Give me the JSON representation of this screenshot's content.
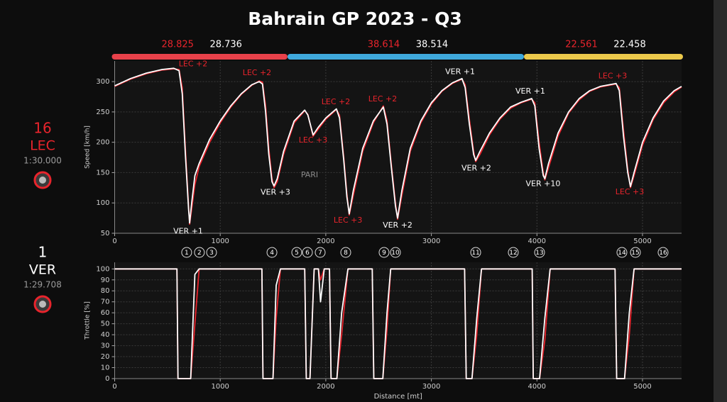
{
  "title": "Bahrain GP 2023 - Q3",
  "drivers": [
    {
      "number": 16,
      "code": "LEC",
      "lap_time": "1:30.000",
      "color": "#e8242c"
    },
    {
      "number": 1,
      "code": "VER",
      "lap_time": "1:29.708",
      "color": "#ffffff"
    }
  ],
  "sectors": [
    {
      "color": "#e8414a",
      "end": 1637,
      "times": [
        28.825,
        28.736
      ]
    },
    {
      "color": "#3fa9dc",
      "end": 3877,
      "times": [
        38.614,
        38.514
      ]
    },
    {
      "color": "#ecc94b",
      "end": 5370,
      "times": [
        22.561,
        22.458
      ]
    }
  ],
  "chart_data": [
    {
      "type": "line",
      "y_label": "Speed [km/h]",
      "x": [
        0,
        150,
        300,
        450,
        560,
        610,
        640,
        670,
        700,
        710,
        730,
        760,
        800,
        900,
        1000,
        1100,
        1200,
        1300,
        1370,
        1400,
        1430,
        1460,
        1490,
        1510,
        1540,
        1600,
        1700,
        1800,
        1830,
        1880,
        1930,
        2000,
        2100,
        2130,
        2170,
        2200,
        2222,
        2260,
        2350,
        2450,
        2545,
        2580,
        2620,
        2660,
        2680,
        2720,
        2800,
        2900,
        3000,
        3100,
        3200,
        3290,
        3320,
        3360,
        3400,
        3420,
        3460,
        3550,
        3650,
        3750,
        3850,
        3950,
        3980,
        4020,
        4060,
        4075,
        4110,
        4200,
        4300,
        4400,
        4500,
        4600,
        4750,
        4780,
        4820,
        4860,
        4886,
        4920,
        5000,
        5100,
        5200,
        5300,
        5370
      ],
      "series": [
        {
          "color": "#e8242c",
          "values": [
            292,
            304,
            313,
            319,
            321,
            320,
            290,
            190,
            95,
            65,
            90,
            130,
            160,
            200,
            232,
            258,
            279,
            294,
            301,
            299,
            260,
            190,
            140,
            125,
            135,
            180,
            232,
            252,
            246,
            210,
            222,
            238,
            254,
            245,
            175,
            115,
            80,
            112,
            185,
            232,
            260,
            236,
            165,
            100,
            73,
            112,
            185,
            232,
            263,
            284,
            297,
            304,
            295,
            238,
            185,
            168,
            180,
            212,
            238,
            256,
            265,
            271,
            265,
            200,
            150,
            138,
            158,
            210,
            248,
            270,
            284,
            291,
            296,
            290,
            220,
            155,
            125,
            145,
            195,
            237,
            265,
            283,
            291
          ]
        },
        {
          "color": "#ffffff",
          "values": [
            293,
            305,
            314,
            320,
            322,
            318,
            280,
            180,
            90,
            67,
            100,
            145,
            165,
            205,
            235,
            260,
            280,
            295,
            300,
            296,
            250,
            180,
            135,
            128,
            140,
            185,
            235,
            253,
            245,
            212,
            225,
            240,
            255,
            240,
            170,
            110,
            82,
            120,
            190,
            235,
            258,
            230,
            160,
            95,
            75,
            120,
            190,
            235,
            265,
            285,
            298,
            305,
            290,
            230,
            180,
            170,
            185,
            215,
            240,
            258,
            266,
            272,
            260,
            190,
            145,
            140,
            165,
            215,
            250,
            272,
            285,
            292,
            297,
            285,
            210,
            150,
            127,
            150,
            200,
            240,
            268,
            285,
            292
          ]
        }
      ],
      "xlim": [
        0,
        5370
      ],
      "ylim": [
        50,
        334
      ],
      "xticks": [
        0,
        1000,
        2000,
        3000,
        4000,
        5000
      ],
      "yticks": [
        50,
        100,
        150,
        200,
        250,
        300
      ],
      "grid": true,
      "annotations": [
        {
          "text": "LEC +2",
          "x": 743,
          "y": 329,
          "color": "#e8242c"
        },
        {
          "text": "VER +1",
          "x": 696,
          "y": 53,
          "color": "#ffffff"
        },
        {
          "text": "LEC +2",
          "x": 1348,
          "y": 314,
          "color": "#e8242c"
        },
        {
          "text": "VER +3",
          "x": 1523,
          "y": 117,
          "color": "#ffffff"
        },
        {
          "text": "LEC +2",
          "x": 2095,
          "y": 266,
          "color": "#e8242c"
        },
        {
          "text": "LEC +3",
          "x": 1880,
          "y": 203,
          "color": "#e8242c"
        },
        {
          "text": "PARI",
          "x": 1846,
          "y": 146,
          "color": "#8a8a8a"
        },
        {
          "text": "LEC +2",
          "x": 2539,
          "y": 271,
          "color": "#e8242c"
        },
        {
          "text": "LEC +3",
          "x": 2210,
          "y": 71,
          "color": "#e8242c"
        },
        {
          "text": "VER +2",
          "x": 2680,
          "y": 63,
          "color": "#ffffff"
        },
        {
          "text": "VER +1",
          "x": 3272,
          "y": 316,
          "color": "#ffffff"
        },
        {
          "text": "VER +2",
          "x": 3426,
          "y": 157,
          "color": "#ffffff"
        },
        {
          "text": "VER +1",
          "x": 3937,
          "y": 284,
          "color": "#ffffff"
        },
        {
          "text": "VER +10",
          "x": 4058,
          "y": 131,
          "color": "#ffffff"
        },
        {
          "text": "LEC +3",
          "x": 4718,
          "y": 309,
          "color": "#e8242c"
        },
        {
          "text": "LEC +3",
          "x": 4879,
          "y": 118,
          "color": "#e8242c"
        }
      ]
    },
    {
      "type": "line",
      "y_label": "Throttle [%]",
      "x_label": "Distance [mt]",
      "x": [
        0,
        590,
        600,
        720,
        760,
        800,
        1395,
        1405,
        1500,
        1530,
        1570,
        1800,
        1815,
        1850,
        1890,
        1930,
        1950,
        1985,
        2035,
        2050,
        2105,
        2150,
        2210,
        2440,
        2455,
        2540,
        2580,
        2615,
        3315,
        3330,
        3385,
        3430,
        3475,
        3955,
        3965,
        4025,
        4075,
        4125,
        4740,
        4755,
        4830,
        4875,
        4920,
        5370
      ],
      "series": [
        {
          "color": "#e8242c",
          "values": [
            100,
            100,
            0,
            0,
            50,
            100,
            100,
            0,
            0,
            55,
            100,
            100,
            0,
            0,
            100,
            100,
            90,
            100,
            100,
            0,
            0,
            40,
            100,
            100,
            0,
            0,
            45,
            100,
            100,
            0,
            0,
            40,
            100,
            100,
            0,
            0,
            35,
            100,
            100,
            0,
            0,
            40,
            100,
            100
          ]
        },
        {
          "color": "#ffffff",
          "values": [
            100,
            100,
            0,
            0,
            95,
            100,
            100,
            0,
            0,
            85,
            100,
            100,
            0,
            0,
            100,
            100,
            70,
            100,
            100,
            0,
            0,
            60,
            100,
            100,
            0,
            0,
            60,
            100,
            100,
            0,
            0,
            55,
            100,
            100,
            0,
            0,
            55,
            100,
            100,
            0,
            0,
            60,
            100,
            100
          ]
        }
      ],
      "xlim": [
        0,
        5370
      ],
      "ylim": [
        0,
        106
      ],
      "xticks": [
        0,
        1000,
        2000,
        3000,
        4000,
        5000
      ],
      "yticks": [
        0,
        10,
        20,
        30,
        40,
        50,
        60,
        70,
        80,
        90,
        100
      ],
      "grid": true,
      "corners": {
        "labels": [
          1,
          2,
          3,
          4,
          5,
          6,
          7,
          8,
          9,
          10,
          11,
          12,
          13,
          14,
          15,
          16
        ],
        "x": [
          682,
          803,
          918,
          1490,
          1725,
          1826,
          1947,
          2189,
          2552,
          2660,
          3420,
          3776,
          4025,
          4805,
          4933,
          5195
        ]
      }
    }
  ]
}
